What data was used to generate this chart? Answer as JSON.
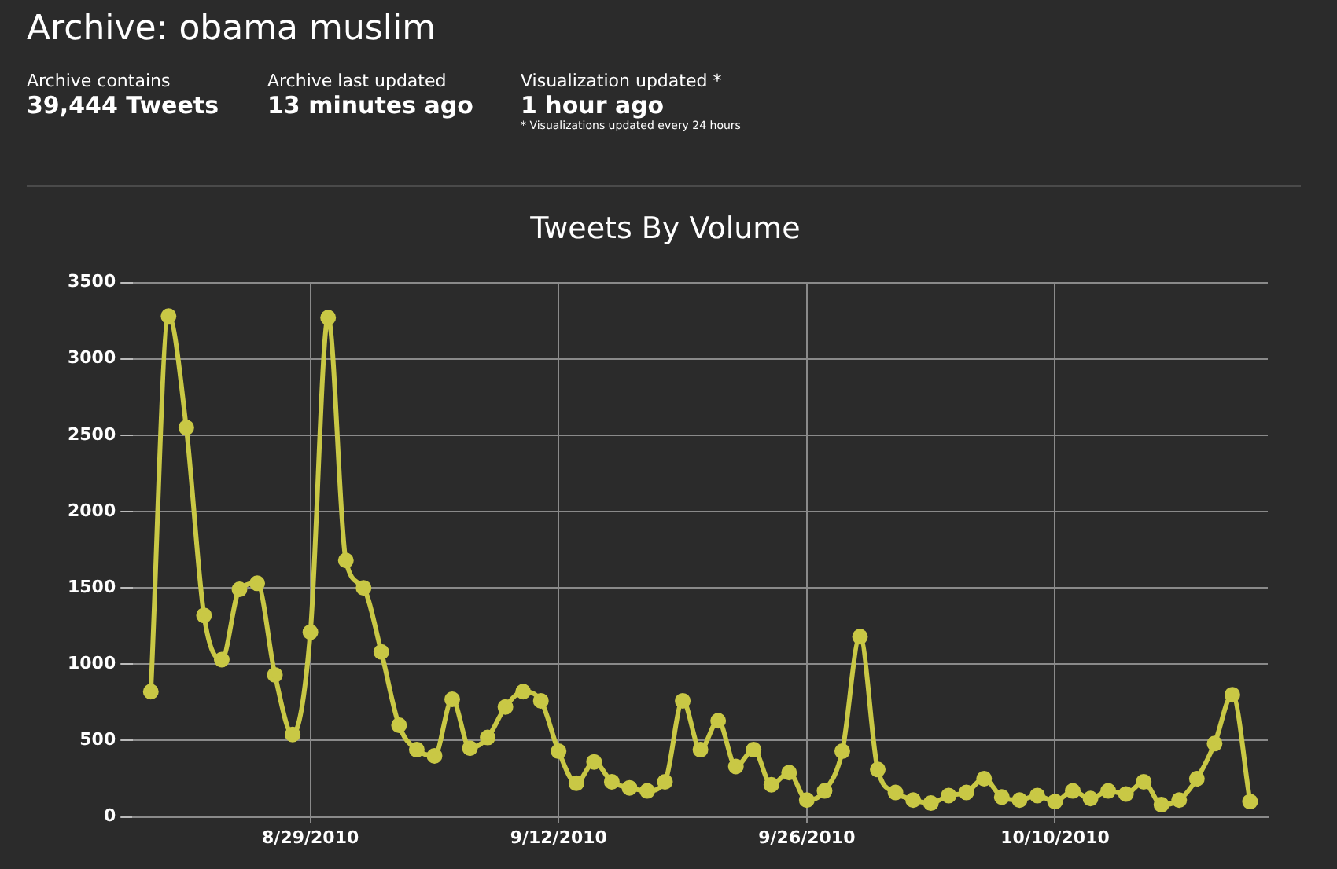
{
  "chart_data": {
    "type": "line",
    "title": "Archive: obama muslim",
    "subtitle": "Tweets By Volume",
    "annotations": [
      "Archive contains",
      "39,444 Tweets",
      "Archive last updated",
      "13 minutes ago",
      "Visualization updated *",
      "1 hour ago",
      "* Visualizations updated every 24 hours"
    ],
    "x": [
      "2010-08-20",
      "2010-08-21",
      "2010-08-22",
      "2010-08-23",
      "2010-08-24",
      "2010-08-25",
      "2010-08-26",
      "2010-08-27",
      "2010-08-28",
      "2010-08-29",
      "2010-08-30",
      "2010-08-31",
      "2010-09-01",
      "2010-09-02",
      "2010-09-03",
      "2010-09-04",
      "2010-09-05",
      "2010-09-06",
      "2010-09-07",
      "2010-09-08",
      "2010-09-09",
      "2010-09-10",
      "2010-09-11",
      "2010-09-12",
      "2010-09-13",
      "2010-09-14",
      "2010-09-15",
      "2010-09-16",
      "2010-09-17",
      "2010-09-18",
      "2010-09-19",
      "2010-09-20",
      "2010-09-21",
      "2010-09-22",
      "2010-09-23",
      "2010-09-24",
      "2010-09-25",
      "2010-09-26",
      "2010-09-27",
      "2010-09-28",
      "2010-09-29",
      "2010-09-30",
      "2010-10-01",
      "2010-10-02",
      "2010-10-03",
      "2010-10-04",
      "2010-10-05",
      "2010-10-06",
      "2010-10-07",
      "2010-10-08",
      "2010-10-09",
      "2010-10-10",
      "2010-10-11",
      "2010-10-12",
      "2010-10-13",
      "2010-10-14",
      "2010-10-15",
      "2010-10-16",
      "2010-10-17",
      "2010-10-18",
      "2010-10-19",
      "2010-10-20",
      "2010-10-21"
    ],
    "series": [
      {
        "color": "#c9c845",
        "values": [
          820,
          3280,
          2550,
          1320,
          1030,
          1490,
          1530,
          930,
          540,
          1210,
          3270,
          1680,
          1500,
          1080,
          600,
          440,
          400,
          770,
          450,
          520,
          720,
          820,
          760,
          430,
          220,
          360,
          230,
          190,
          170,
          230,
          760,
          440,
          630,
          330,
          440,
          210,
          290,
          110,
          170,
          430,
          1180,
          310,
          160,
          110,
          90,
          140,
          160,
          250,
          130,
          110,
          140,
          100,
          170,
          120,
          170,
          150,
          230,
          80,
          110,
          250,
          480,
          800,
          100
        ]
      }
    ],
    "xlim": [
      "2010-08-19",
      "2010-10-22"
    ],
    "xticks": [
      {
        "value": "2010-08-29",
        "label": "8/29/2010"
      },
      {
        "value": "2010-09-12",
        "label": "9/12/2010"
      },
      {
        "value": "2010-09-26",
        "label": "9/26/2010"
      },
      {
        "value": "2010-10-10",
        "label": "10/10/2010"
      }
    ],
    "ylim": [
      0,
      3500
    ],
    "yticks": [
      0,
      500,
      1000,
      1500,
      2000,
      2500,
      3000,
      3500
    ],
    "grid": true,
    "marker": "circle",
    "line_style": "solid"
  }
}
